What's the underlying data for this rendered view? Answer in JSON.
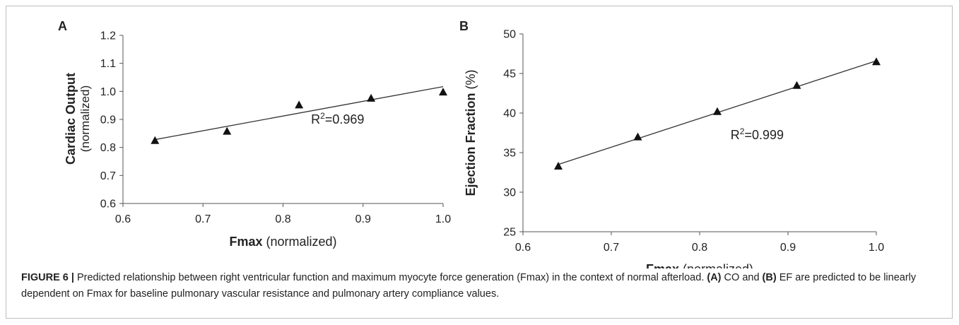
{
  "chart_data": [
    {
      "type": "scatter",
      "panel_label": "A",
      "title": "",
      "xlabel_bold": "Fmax",
      "xlabel_rest": " (normalized)",
      "ylabel_bold": "Cardiac Output",
      "ylabel_rest": "(normalized)",
      "xlim": [
        0.6,
        1.0
      ],
      "ylim": [
        0.6,
        1.2
      ],
      "xticks": [
        "0.6",
        "0.7",
        "0.8",
        "0.9",
        "1.0"
      ],
      "yticks": [
        "0.6",
        "0.7",
        "0.8",
        "0.9",
        "1.0",
        "1.1",
        "1.2"
      ],
      "x": [
        0.64,
        0.73,
        0.82,
        0.91,
        1.0
      ],
      "y": [
        0.825,
        0.858,
        0.952,
        0.976,
        0.998
      ],
      "trendline": {
        "x": [
          0.64,
          1.0
        ],
        "y": [
          0.828,
          1.017
        ]
      },
      "r2_prefix": "R",
      "r2_exp": "2",
      "r2_value": "=0.969",
      "annotation_at": {
        "x": 0.835,
        "y": 0.885
      },
      "marker": "triangle"
    },
    {
      "type": "scatter",
      "panel_label": "B",
      "title": "",
      "xlabel_bold": "Fmax",
      "xlabel_rest": " (normalized)",
      "ylabel_bold": "Ejection Fraction",
      "ylabel_rest": " (%)",
      "xlim": [
        0.6,
        1.0
      ],
      "ylim": [
        25,
        50
      ],
      "xticks": [
        "0.6",
        "0.7",
        "0.8",
        "0.9",
        "1.0"
      ],
      "yticks": [
        "25",
        "30",
        "35",
        "40",
        "45",
        "50"
      ],
      "x": [
        0.64,
        0.73,
        0.82,
        0.91,
        1.0
      ],
      "y": [
        33.3,
        37.0,
        40.2,
        43.5,
        46.5
      ],
      "trendline": {
        "x": [
          0.64,
          1.0
        ],
        "y": [
          33.5,
          46.6
        ]
      },
      "r2_prefix": "R",
      "r2_exp": "2",
      "r2_value": "=0.999",
      "annotation_at": {
        "x": 0.835,
        "y": 36.7
      },
      "marker": "triangle"
    }
  ],
  "caption": {
    "label": "FIGURE 6 |",
    "text_1": " Predicted relationship between right ventricular function and maximum myocyte force generation (Fmax) in the context of normal afterload. ",
    "ref_a": "(A)",
    "text_2": " CO and ",
    "ref_b": "(B)",
    "text_3": " EF are predicted to be linearly dependent on Fmax for baseline pulmonary vascular resistance and pulmonary artery compliance values."
  }
}
